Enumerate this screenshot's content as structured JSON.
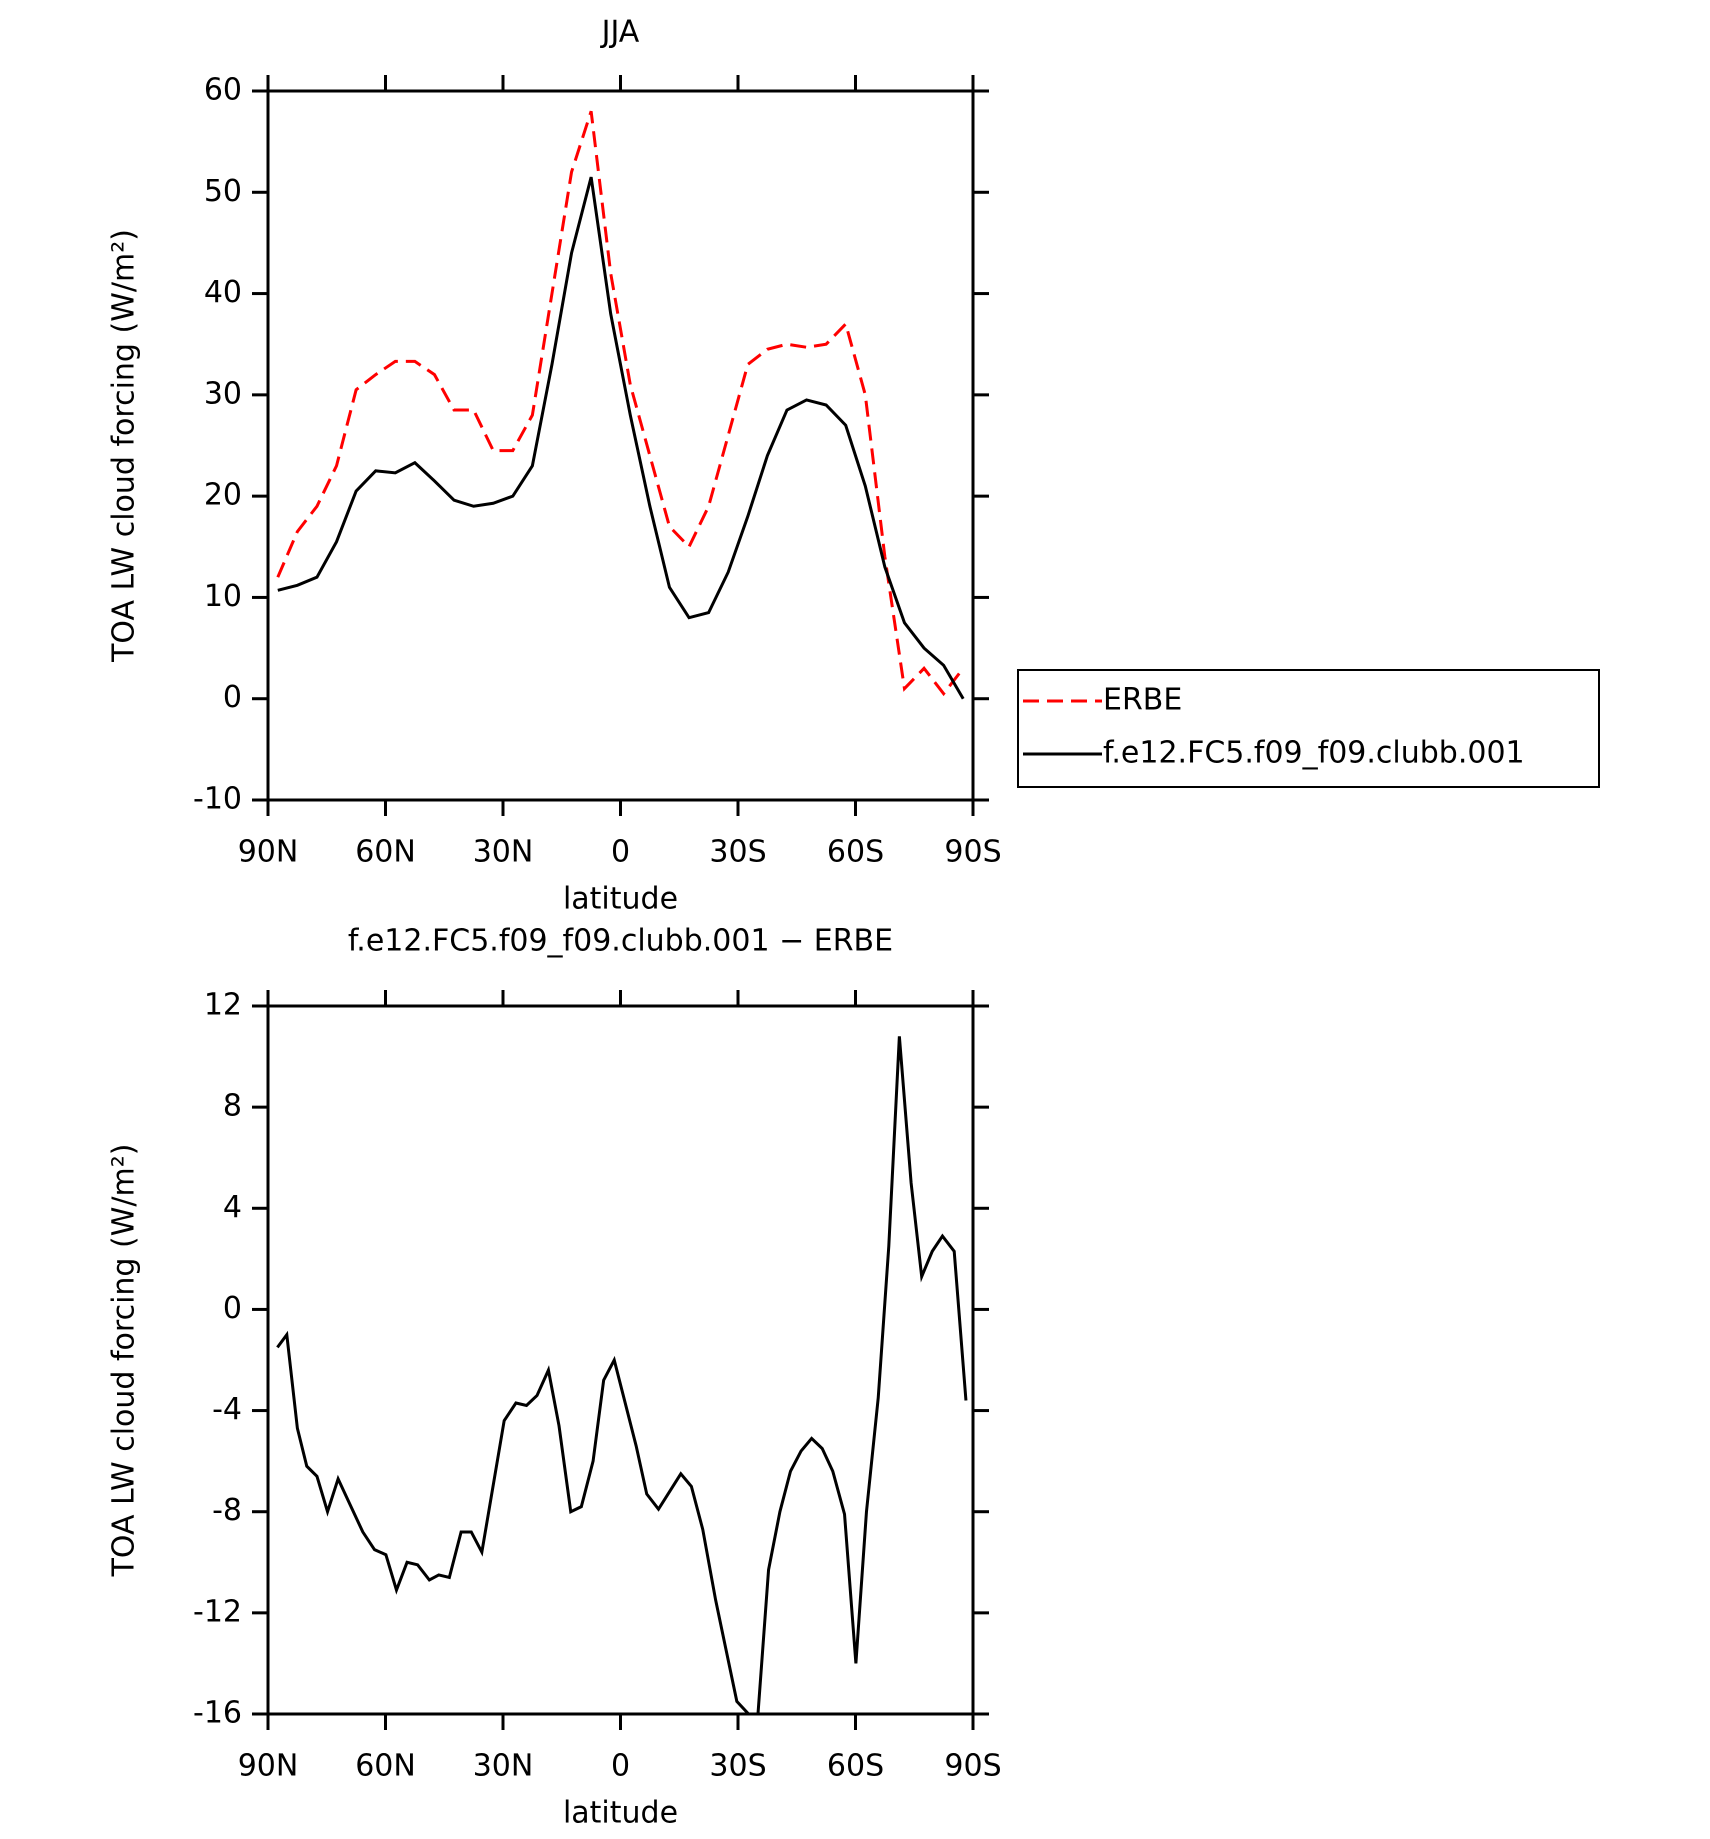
{
  "chart_data": [
    {
      "type": "line",
      "title": "JJA",
      "xlabel": "latitude",
      "ylabel": "TOA LW cloud forcing (W/m²)",
      "x": [
        87.5,
        82.5,
        77.5,
        72.5,
        67.5,
        62.5,
        57.5,
        52.5,
        47.5,
        42.5,
        37.5,
        32.5,
        27.5,
        22.5,
        17.5,
        12.5,
        7.5,
        2.5,
        -2.5,
        -7.5,
        -12.5,
        -17.5,
        -22.5,
        -27.5,
        -32.5,
        -37.5,
        -42.5,
        -47.5,
        -52.5,
        -57.5,
        -62.5,
        -67.5,
        -72.5,
        -77.5,
        -82.5,
        -87.5
      ],
      "series": [
        {
          "name": "ERBE",
          "color": "#ff0000",
          "dash": "dashed",
          "values": [
            12,
            16.5,
            19,
            23,
            30.5,
            32,
            33.3,
            33.3,
            32,
            28.5,
            28.5,
            24.5,
            24.5,
            28,
            40,
            52,
            58,
            42,
            31,
            24,
            17,
            15,
            19,
            26,
            33,
            34.5,
            35,
            34.7,
            35,
            37,
            30,
            14,
            1,
            3,
            0.5,
            3
          ]
        },
        {
          "name": "f.e12.FC5.f09_f09.clubb.001",
          "color": "#000000",
          "dash": "solid",
          "values": [
            10.7,
            11.2,
            12,
            15.5,
            20.5,
            22.5,
            22.3,
            23.3,
            21.5,
            19.6,
            19,
            19.3,
            20,
            23,
            33,
            44,
            51.5,
            38,
            28,
            19,
            11,
            8,
            8.5,
            12.5,
            18,
            24,
            28.5,
            29.5,
            29,
            27,
            21,
            13,
            7.5,
            5,
            3.3,
            0
          ]
        }
      ],
      "xlim": [
        90,
        -90
      ],
      "xticks": [
        {
          "value": 90,
          "label": "90N"
        },
        {
          "value": 60,
          "label": "60N"
        },
        {
          "value": 30,
          "label": "30N"
        },
        0,
        {
          "value": -30,
          "label": "30S"
        },
        {
          "value": -60,
          "label": "60S"
        },
        {
          "value": -90,
          "label": "90S"
        }
      ],
      "ylim": [
        -10,
        60
      ],
      "yticks": [
        -10,
        0,
        10,
        20,
        30,
        40,
        50,
        60
      ],
      "legend": "right"
    },
    {
      "type": "line",
      "title": "f.e12.FC5.f09_f09.clubb.001 − ERBE",
      "xlabel": "latitude",
      "ylabel": "TOA LW cloud forcing (W/m²)",
      "x": [
        87.6,
        85.2,
        82.5,
        80.1,
        77.5,
        74.8,
        72.1,
        69.7,
        65.8,
        62.8,
        59.9,
        57.2,
        54.5,
        51.8,
        48.8,
        46.4,
        43.7,
        40.7,
        38.1,
        35.4,
        29.7,
        26.7,
        24.0,
        21.3,
        18.4,
        15.7,
        12.7,
        10.0,
        7.0,
        4.3,
        1.6,
        -4.0,
        -6.7,
        -9.7,
        -15.4,
        -18.1,
        -21.0,
        -24.3,
        -29.7,
        -32.7,
        -35.1,
        -37.8,
        -40.7,
        -43.4,
        -46.1,
        -48.8,
        -51.5,
        -54.2,
        -57.2,
        -60.1,
        -62.8,
        -65.8,
        -68.5,
        -71.2,
        -74.2,
        -76.9,
        -79.6,
        -82.2,
        -85.2,
        -88.2
      ],
      "series": [
        {
          "color": "#000000",
          "dash": "solid",
          "values": [
            -1.5,
            -1,
            -4.7,
            -6.2,
            -6.6,
            -8,
            -6.7,
            -7.5,
            -8.8,
            -9.5,
            -9.7,
            -11.1,
            -10,
            -10.1,
            -10.7,
            -10.5,
            -10.6,
            -8.8,
            -8.8,
            -9.6,
            -4.4,
            -3.7,
            -3.8,
            -3.4,
            -2.4,
            -4.6,
            -8,
            -7.8,
            -6,
            -2.8,
            -2,
            -5.4,
            -7.3,
            -7.9,
            -6.5,
            -7,
            -8.7,
            -11.5,
            -15.5,
            -16,
            -16,
            -10.3,
            -8,
            -6.4,
            -5.6,
            -5.1,
            -5.5,
            -6.4,
            -8.1,
            -14,
            -8,
            -3.5,
            2.5,
            10.8,
            5,
            1.3,
            2.3,
            2.9,
            2.3,
            -3.6
          ]
        }
      ],
      "xlim": [
        90,
        -90
      ],
      "xticks": [
        {
          "value": 90,
          "label": "90N"
        },
        {
          "value": 60,
          "label": "60N"
        },
        {
          "value": 30,
          "label": "30N"
        },
        0,
        {
          "value": -30,
          "label": "30S"
        },
        {
          "value": -60,
          "label": "60S"
        },
        {
          "value": -90,
          "label": "90S"
        }
      ],
      "ylim": [
        -16,
        12
      ],
      "yticks": [
        -16,
        -12,
        -8,
        -4,
        0,
        4,
        8,
        12
      ]
    }
  ]
}
